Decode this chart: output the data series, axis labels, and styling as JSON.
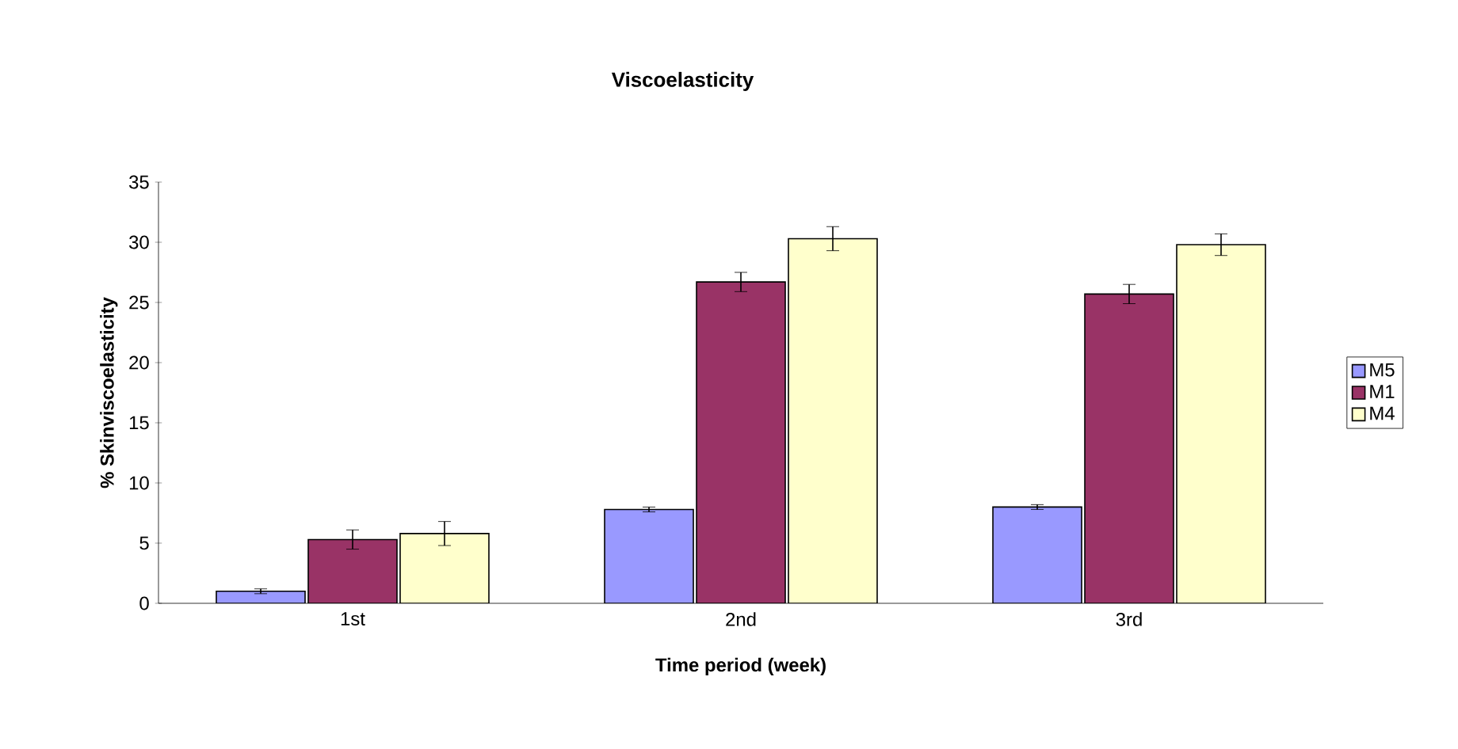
{
  "chart_data": {
    "type": "bar",
    "title": "Viscoelasticity",
    "xlabel": "Time period (week)",
    "ylabel": "% Skinviscoelasticity",
    "categories": [
      "1st",
      "2nd",
      "3rd"
    ],
    "series": [
      {
        "name": "M5",
        "color": "#9999ff",
        "values": [
          1.0,
          7.8,
          8.0
        ],
        "errors": [
          0.2,
          0.2,
          0.2
        ]
      },
      {
        "name": "M1",
        "color": "#993366",
        "values": [
          5.3,
          26.7,
          25.7
        ],
        "errors": [
          0.8,
          0.8,
          0.8
        ]
      },
      {
        "name": "M4",
        "color": "#ffffcc",
        "values": [
          5.8,
          30.3,
          29.8
        ],
        "errors": [
          1.0,
          1.0,
          0.9
        ]
      }
    ],
    "ylim": [
      0,
      35
    ],
    "yticks": [
      0,
      5,
      10,
      15,
      20,
      25,
      30,
      35
    ],
    "grid": false,
    "legend": "right"
  }
}
